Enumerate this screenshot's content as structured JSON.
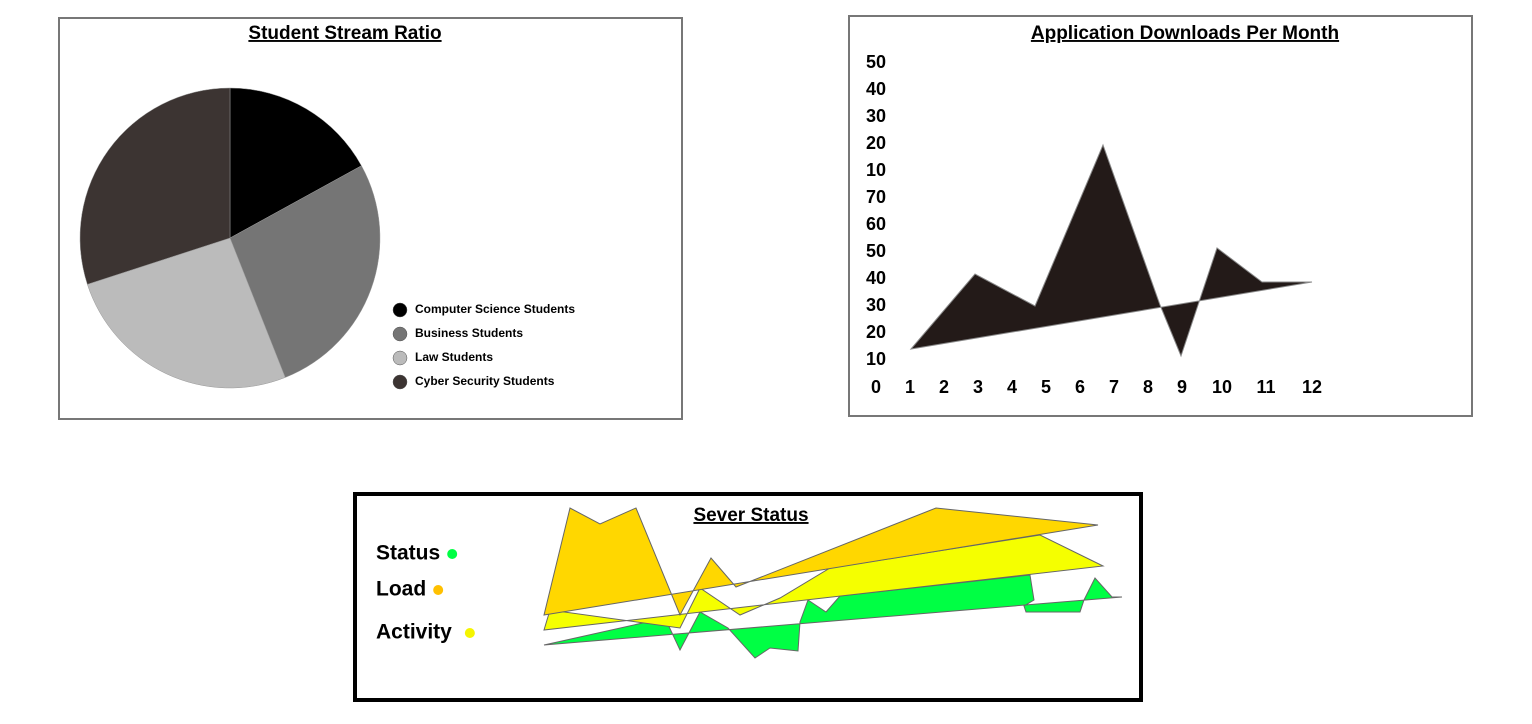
{
  "pie_panel": {
    "title": "Student Stream Ratio",
    "slices": [
      {
        "label": "Computer Science Students",
        "value": 17,
        "color": "#000000"
      },
      {
        "label": "Business Students",
        "value": 27,
        "color": "#757575"
      },
      {
        "label": "Law Students",
        "value": 26,
        "color": "#bbbbbb"
      },
      {
        "label": "Cyber Security Students",
        "value": 30,
        "color": "#3c3432"
      }
    ]
  },
  "downloads_panel": {
    "title": "Application Downloads Per Month",
    "y_labels": [
      "50",
      "40",
      "30",
      "20",
      "10",
      "70",
      "60",
      "50",
      "40",
      "30",
      "20",
      "10",
      "0"
    ],
    "x_labels": [
      "1",
      "2",
      "3",
      "4",
      "5",
      "6",
      "7",
      "8",
      "9",
      "10",
      "11",
      "12"
    ]
  },
  "server_panel": {
    "title": "Sever Status",
    "legend": [
      {
        "label": "Status",
        "color": "#00ff44"
      },
      {
        "label": "Load",
        "color": "#ffc000"
      },
      {
        "label": "Activity",
        "color": "#f5f500"
      }
    ]
  }
}
